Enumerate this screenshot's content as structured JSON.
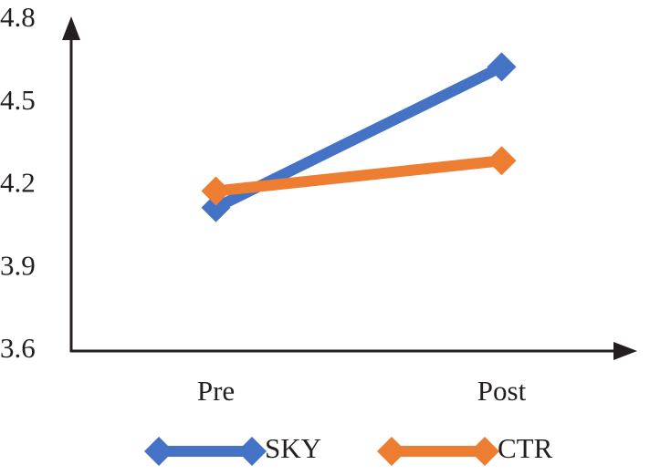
{
  "chart_data": {
    "type": "line",
    "categories": [
      "Pre",
      "Post"
    ],
    "series": [
      {
        "name": "SKY",
        "color": "#4472c4",
        "values": [
          4.12,
          4.63
        ]
      },
      {
        "name": "CTR",
        "color": "#ed7d31",
        "values": [
          4.18,
          4.29
        ]
      }
    ],
    "ylim": [
      3.6,
      4.8
    ],
    "yticks": [
      3.6,
      3.9,
      4.2,
      4.5,
      4.8
    ],
    "grid": false,
    "legend": "bottom"
  }
}
